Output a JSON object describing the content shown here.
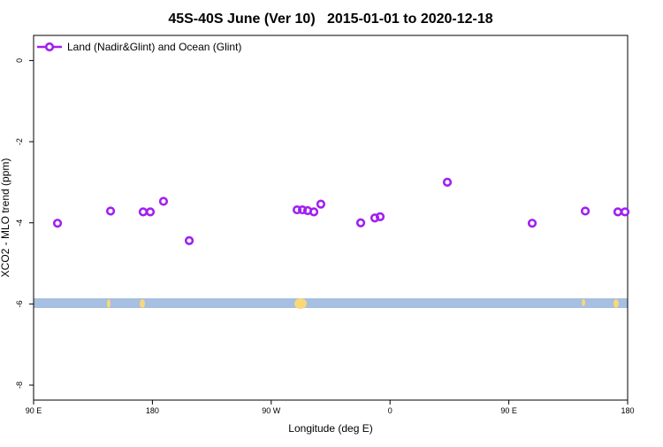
{
  "chart_data": {
    "type": "scatter",
    "title": "45S-40S June (Ver 10)   2015-01-01 to 2020-12-18",
    "x_label": "Longitude (deg E)",
    "y_label": "XCO2 - MLO trend (ppm)",
    "xlim": [
      90,
      540
    ],
    "ylim": [
      -8.37,
      0.62
    ],
    "xticks": [
      {
        "value": 90,
        "label": "90 E"
      },
      180,
      {
        "value": 270,
        "label": "90 W"
      },
      {
        "value": 360,
        "label": "0"
      },
      {
        "value": 450,
        "label": "90 E"
      },
      {
        "value": 540,
        "label": "180"
      }
    ],
    "yticks": [
      0,
      -2,
      -4,
      -6,
      -8
    ],
    "legend": "top-left",
    "series": [
      {
        "name": "Land (Nadir&Glint) and Ocean (Glint)",
        "color": "#a020f0",
        "x": [
          108.1,
          148.3,
          173,
          178.4,
          188.4,
          207.9,
          289.6,
          293.6,
          297.6,
          302.3,
          307.6,
          337.8,
          348.5,
          352.5,
          403.4,
          467.7,
          507.9,
          532.6,
          538
        ],
        "values": [
          -4.01,
          -3.71,
          -3.73,
          -3.73,
          -3.47,
          -4.44,
          -3.68,
          -3.68,
          -3.7,
          -3.73,
          -3.54,
          -4.0,
          -3.88,
          -3.85,
          -3.0,
          -4.01,
          -3.71,
          -3.73,
          -3.73
        ]
      }
    ]
  }
}
